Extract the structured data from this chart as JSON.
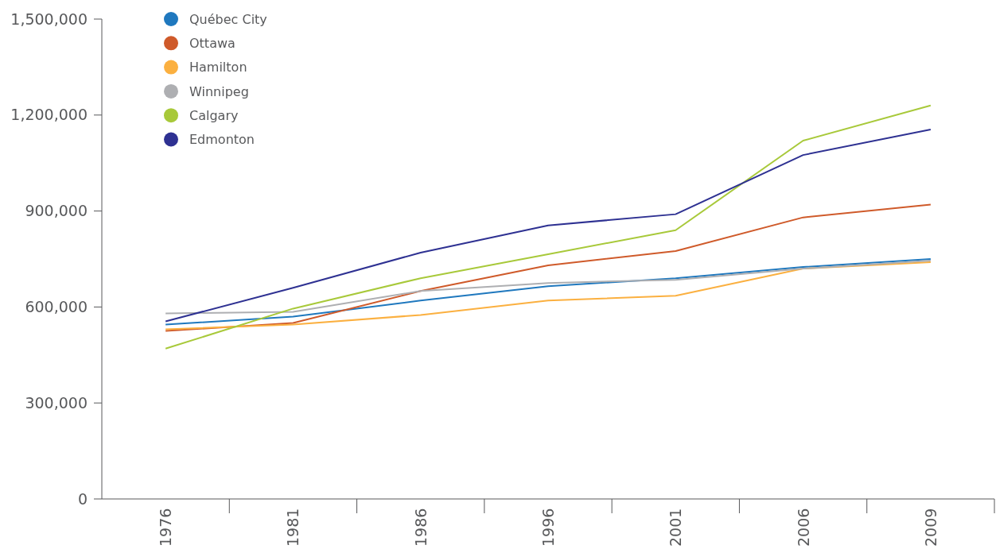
{
  "chart_data": {
    "type": "line",
    "categories": [
      "1976",
      "1981",
      "1986",
      "1996",
      "2001",
      "2006",
      "2009"
    ],
    "series": [
      {
        "name": "Québec City",
        "color": "#1f78be",
        "values": [
          545000,
          570000,
          620000,
          665000,
          690000,
          725000,
          750000
        ]
      },
      {
        "name": "Ottawa",
        "color": "#cf5a2a",
        "values": [
          525000,
          550000,
          650000,
          730000,
          775000,
          880000,
          920000
        ]
      },
      {
        "name": "Hamilton",
        "color": "#fbb040",
        "values": [
          530000,
          545000,
          575000,
          620000,
          635000,
          720000,
          740000
        ]
      },
      {
        "name": "Winnipeg",
        "color": "#aeafb2",
        "values": [
          580000,
          585000,
          650000,
          675000,
          685000,
          720000,
          745000
        ]
      },
      {
        "name": "Calgary",
        "color": "#a8c93a",
        "values": [
          470000,
          595000,
          690000,
          765000,
          840000,
          1120000,
          1230000
        ]
      },
      {
        "name": "Edmonton",
        "color": "#2e3192",
        "values": [
          555000,
          660000,
          770000,
          855000,
          890000,
          1075000,
          1155000
        ]
      }
    ],
    "ylim": [
      0,
      1500000
    ],
    "yticks": [
      {
        "value": 0,
        "label": "0"
      },
      {
        "value": 300000,
        "label": "300,000"
      },
      {
        "value": 600000,
        "label": "600,000"
      },
      {
        "value": 900000,
        "label": "900,000"
      },
      {
        "value": 1200000,
        "label": "1,200,000"
      },
      {
        "value": 1500000,
        "label": "1,500,000"
      }
    ],
    "grid": false,
    "legend": "top left",
    "marker": "none",
    "line_style": "solid"
  }
}
